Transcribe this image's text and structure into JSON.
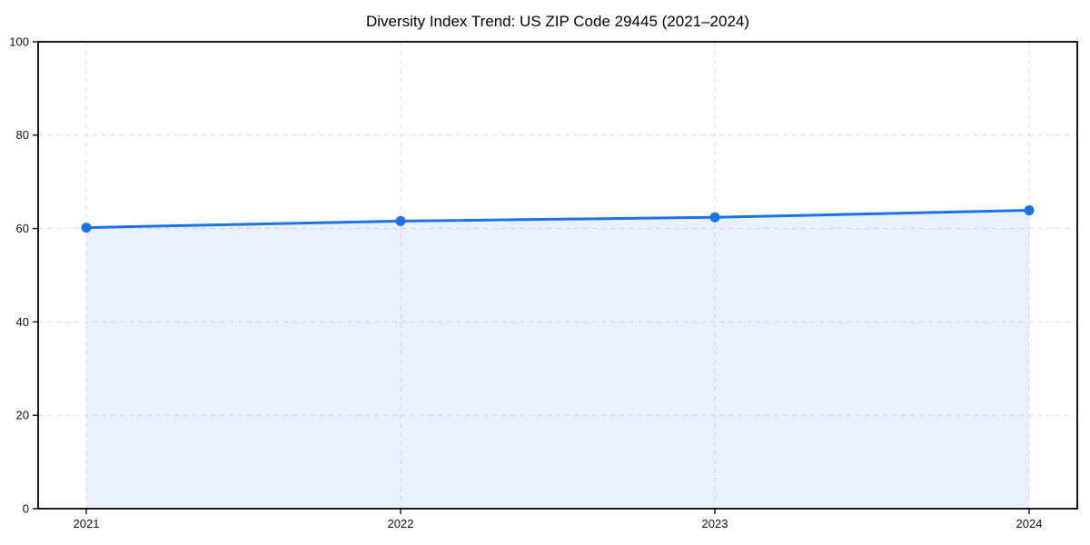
{
  "chart_data": {
    "type": "area",
    "title": "Diversity Index Trend: US ZIP Code 29445 (2021–2024)",
    "categories": [
      "2021",
      "2022",
      "2023",
      "2024"
    ],
    "series": [
      {
        "name": "Diversity Index",
        "values": [
          60.2,
          61.6,
          62.4,
          63.9
        ]
      }
    ],
    "xlabel": "",
    "ylabel": "",
    "ylim": [
      0,
      100
    ],
    "yticks": [
      0,
      20,
      40,
      60,
      80,
      100
    ],
    "grid": true,
    "grid_style": "dashed",
    "legend": false,
    "marker": "circle",
    "colors": {
      "line": "#1a73e8",
      "fill": "rgba(26,115,232,0.10)",
      "grid": "#dcdcdc",
      "axis": "#000000",
      "text": "#111111",
      "background": "#ffffff"
    }
  }
}
